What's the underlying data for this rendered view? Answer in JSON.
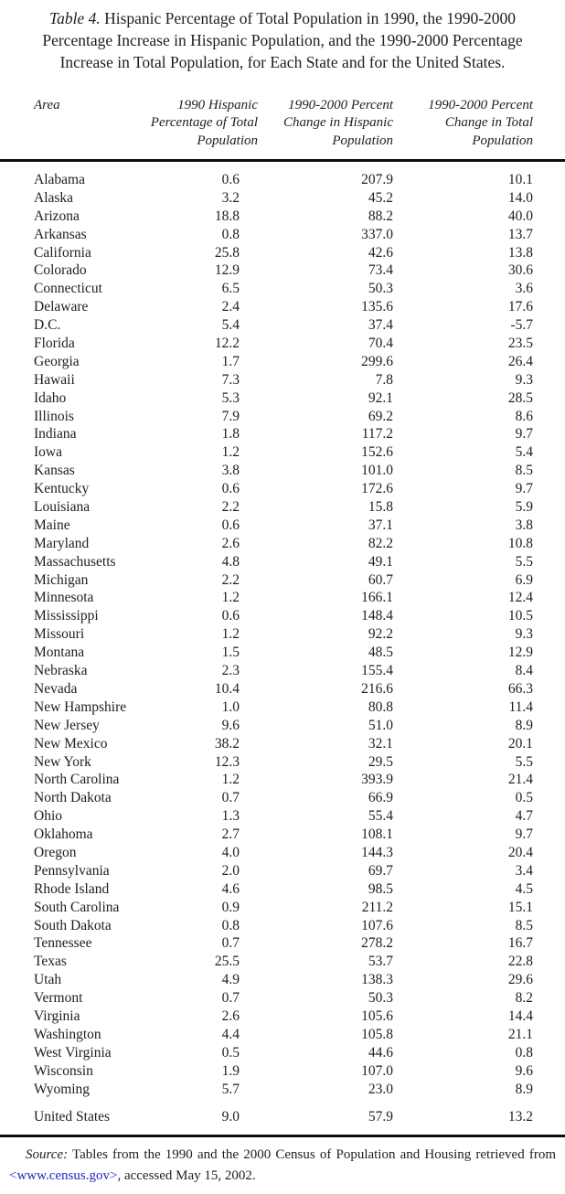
{
  "page": {
    "background": "#ffffff",
    "text_color": "#1e1e1e",
    "link_color": "#2424c8",
    "rule_color": "#0d0d0d"
  },
  "title": {
    "label": "Table 4.",
    "line1_rest": " Hispanic Percentage of Total Population in 1990, the 1990-2000",
    "line2": "Percentage Increase in Hispanic Population, and the 1990-2000 Percentage",
    "line3": "Increase in Total Population, for Each State and for the United States."
  },
  "header": {
    "area": "Area",
    "col2": [
      "1990 Hispanic",
      "Percentage of Total",
      "Population"
    ],
    "col3": [
      "1990-2000 Percent",
      "Change in Hispanic",
      "Population"
    ],
    "col4": [
      "1990-2000 Percent",
      "Change in Total",
      "Population"
    ]
  },
  "table": {
    "rows": [
      [
        "Alabama",
        "0.6",
        "207.9",
        "10.1"
      ],
      [
        "Alaska",
        "3.2",
        "45.2",
        "14.0"
      ],
      [
        "Arizona",
        "18.8",
        "88.2",
        "40.0"
      ],
      [
        "Arkansas",
        "0.8",
        "337.0",
        "13.7"
      ],
      [
        "California",
        "25.8",
        "42.6",
        "13.8"
      ],
      [
        "Colorado",
        "12.9",
        "73.4",
        "30.6"
      ],
      [
        "Connecticut",
        "6.5",
        "50.3",
        "3.6"
      ],
      [
        "Delaware",
        "2.4",
        "135.6",
        "17.6"
      ],
      [
        "D.C.",
        "5.4",
        "37.4",
        "-5.7"
      ],
      [
        "Florida",
        "12.2",
        "70.4",
        "23.5"
      ],
      [
        "Georgia",
        "1.7",
        "299.6",
        "26.4"
      ],
      [
        "Hawaii",
        "7.3",
        "7.8",
        "9.3"
      ],
      [
        "Idaho",
        "5.3",
        "92.1",
        "28.5"
      ],
      [
        "Illinois",
        "7.9",
        "69.2",
        "8.6"
      ],
      [
        "Indiana",
        "1.8",
        "117.2",
        "9.7"
      ],
      [
        "Iowa",
        "1.2",
        "152.6",
        "5.4"
      ],
      [
        "Kansas",
        "3.8",
        "101.0",
        "8.5"
      ],
      [
        "Kentucky",
        "0.6",
        "172.6",
        "9.7"
      ],
      [
        "Louisiana",
        "2.2",
        "15.8",
        "5.9"
      ],
      [
        "Maine",
        "0.6",
        "37.1",
        "3.8"
      ],
      [
        "Maryland",
        "2.6",
        "82.2",
        "10.8"
      ],
      [
        "Massachusetts",
        "4.8",
        "49.1",
        "5.5"
      ],
      [
        "Michigan",
        "2.2",
        "60.7",
        "6.9"
      ],
      [
        "Minnesota",
        "1.2",
        "166.1",
        "12.4"
      ],
      [
        "Mississippi",
        "0.6",
        "148.4",
        "10.5"
      ],
      [
        "Missouri",
        "1.2",
        "92.2",
        "9.3"
      ],
      [
        "Montana",
        "1.5",
        "48.5",
        "12.9"
      ],
      [
        "Nebraska",
        "2.3",
        "155.4",
        "8.4"
      ],
      [
        "Nevada",
        "10.4",
        "216.6",
        "66.3"
      ],
      [
        "New Hampshire",
        "1.0",
        "80.8",
        "11.4"
      ],
      [
        "New Jersey",
        "9.6",
        "51.0",
        "8.9"
      ],
      [
        "New Mexico",
        "38.2",
        "32.1",
        "20.1"
      ],
      [
        "New York",
        "12.3",
        "29.5",
        "5.5"
      ],
      [
        "North Carolina",
        "1.2",
        "393.9",
        "21.4"
      ],
      [
        "North Dakota",
        "0.7",
        "66.9",
        "0.5"
      ],
      [
        "Ohio",
        "1.3",
        "55.4",
        "4.7"
      ],
      [
        "Oklahoma",
        "2.7",
        "108.1",
        "9.7"
      ],
      [
        "Oregon",
        "4.0",
        "144.3",
        "20.4"
      ],
      [
        "Pennsylvania",
        "2.0",
        "69.7",
        "3.4"
      ],
      [
        "Rhode Island",
        "4.6",
        "98.5",
        "4.5"
      ],
      [
        "South Carolina",
        "0.9",
        "211.2",
        "15.1"
      ],
      [
        "South Dakota",
        "0.8",
        "107.6",
        "8.5"
      ],
      [
        "Tennessee",
        "0.7",
        "278.2",
        "16.7"
      ],
      [
        "Texas",
        "25.5",
        "53.7",
        "22.8"
      ],
      [
        "Utah",
        "4.9",
        "138.3",
        "29.6"
      ],
      [
        "Vermont",
        "0.7",
        "50.3",
        "8.2"
      ],
      [
        "Virginia",
        "2.6",
        "105.6",
        "14.4"
      ],
      [
        "Washington",
        "4.4",
        "105.8",
        "21.1"
      ],
      [
        "West Virginia",
        "0.5",
        "44.6",
        "0.8"
      ],
      [
        "Wisconsin",
        "1.9",
        "107.0",
        "9.6"
      ],
      [
        "Wyoming",
        "5.7",
        "23.0",
        "8.9"
      ]
    ],
    "us_row": [
      "United States",
      "9.0",
      "57.9",
      "13.2"
    ]
  },
  "source": {
    "label": "Source:",
    "line1_rest": " Tables from the 1990 and the 2000 Census of Population and Housing retrieved from",
    "bracket_open": "<",
    "link": "www.census.gov",
    "bracket_close": ">",
    "after_link": ", accessed May 15, 2002."
  }
}
